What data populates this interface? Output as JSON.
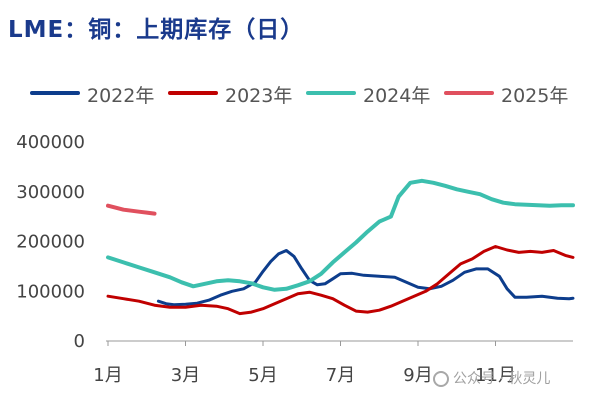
{
  "title": "LME：铜：上期库存（日）",
  "watermark": "公众号 · 秋灵儿",
  "chart_data": {
    "type": "line",
    "ylim": [
      0,
      400000
    ],
    "yticks": [
      "400000",
      "300000",
      "200000",
      "100000",
      "0"
    ],
    "xlim": [
      1,
      13
    ],
    "xticks": [
      "1月",
      "3月",
      "5月",
      "7月",
      "9月",
      "11月"
    ],
    "grid": false,
    "legend_position": "top",
    "series": [
      {
        "name": "2022年",
        "color": "#0d3d8c",
        "points": [
          [
            2.3,
            80000
          ],
          [
            2.5,
            75000
          ],
          [
            2.7,
            73000
          ],
          [
            3.0,
            74000
          ],
          [
            3.3,
            76000
          ],
          [
            3.6,
            82000
          ],
          [
            3.9,
            92000
          ],
          [
            4.2,
            100000
          ],
          [
            4.5,
            105000
          ],
          [
            4.8,
            118000
          ],
          [
            5.0,
            140000
          ],
          [
            5.2,
            160000
          ],
          [
            5.4,
            175000
          ],
          [
            5.6,
            182000
          ],
          [
            5.8,
            170000
          ],
          [
            6.0,
            145000
          ],
          [
            6.2,
            122000
          ],
          [
            6.4,
            113000
          ],
          [
            6.6,
            115000
          ],
          [
            6.8,
            125000
          ],
          [
            7.0,
            135000
          ],
          [
            7.3,
            136000
          ],
          [
            7.6,
            132000
          ],
          [
            8.0,
            130000
          ],
          [
            8.4,
            128000
          ],
          [
            8.7,
            118000
          ],
          [
            9.0,
            108000
          ],
          [
            9.3,
            105000
          ],
          [
            9.6,
            110000
          ],
          [
            9.9,
            122000
          ],
          [
            10.2,
            138000
          ],
          [
            10.5,
            145000
          ],
          [
            10.8,
            145000
          ],
          [
            11.1,
            130000
          ],
          [
            11.3,
            105000
          ],
          [
            11.5,
            88000
          ],
          [
            11.8,
            88000
          ],
          [
            12.2,
            90000
          ],
          [
            12.6,
            86000
          ],
          [
            12.9,
            85000
          ],
          [
            13.0,
            86000
          ]
        ]
      },
      {
        "name": "2023年",
        "color": "#c00000",
        "points": [
          [
            1.0,
            90000
          ],
          [
            1.4,
            85000
          ],
          [
            1.8,
            80000
          ],
          [
            2.2,
            72000
          ],
          [
            2.6,
            68000
          ],
          [
            3.0,
            68000
          ],
          [
            3.4,
            72000
          ],
          [
            3.8,
            70000
          ],
          [
            4.1,
            65000
          ],
          [
            4.4,
            55000
          ],
          [
            4.7,
            58000
          ],
          [
            5.0,
            65000
          ],
          [
            5.3,
            75000
          ],
          [
            5.6,
            85000
          ],
          [
            5.9,
            95000
          ],
          [
            6.2,
            98000
          ],
          [
            6.5,
            92000
          ],
          [
            6.8,
            85000
          ],
          [
            7.1,
            72000
          ],
          [
            7.4,
            60000
          ],
          [
            7.7,
            58000
          ],
          [
            8.0,
            62000
          ],
          [
            8.3,
            70000
          ],
          [
            8.6,
            80000
          ],
          [
            8.9,
            90000
          ],
          [
            9.2,
            100000
          ],
          [
            9.5,
            115000
          ],
          [
            9.8,
            135000
          ],
          [
            10.1,
            155000
          ],
          [
            10.4,
            165000
          ],
          [
            10.7,
            180000
          ],
          [
            11.0,
            190000
          ],
          [
            11.3,
            183000
          ],
          [
            11.6,
            178000
          ],
          [
            11.9,
            180000
          ],
          [
            12.2,
            178000
          ],
          [
            12.5,
            182000
          ],
          [
            12.8,
            172000
          ],
          [
            13.0,
            168000
          ]
        ]
      },
      {
        "name": "2024年",
        "color": "#3cbfae",
        "points": [
          [
            1.0,
            168000
          ],
          [
            1.4,
            158000
          ],
          [
            1.8,
            148000
          ],
          [
            2.2,
            138000
          ],
          [
            2.6,
            128000
          ],
          [
            2.9,
            118000
          ],
          [
            3.2,
            110000
          ],
          [
            3.5,
            115000
          ],
          [
            3.8,
            120000
          ],
          [
            4.1,
            122000
          ],
          [
            4.4,
            120000
          ],
          [
            4.7,
            116000
          ],
          [
            5.0,
            108000
          ],
          [
            5.3,
            103000
          ],
          [
            5.6,
            105000
          ],
          [
            5.9,
            112000
          ],
          [
            6.2,
            120000
          ],
          [
            6.5,
            135000
          ],
          [
            6.8,
            158000
          ],
          [
            7.1,
            178000
          ],
          [
            7.4,
            198000
          ],
          [
            7.7,
            220000
          ],
          [
            8.0,
            240000
          ],
          [
            8.3,
            250000
          ],
          [
            8.5,
            290000
          ],
          [
            8.8,
            318000
          ],
          [
            9.1,
            322000
          ],
          [
            9.4,
            318000
          ],
          [
            9.7,
            312000
          ],
          [
            10.0,
            305000
          ],
          [
            10.3,
            300000
          ],
          [
            10.6,
            295000
          ],
          [
            10.9,
            285000
          ],
          [
            11.2,
            278000
          ],
          [
            11.5,
            275000
          ],
          [
            11.8,
            274000
          ],
          [
            12.1,
            273000
          ],
          [
            12.4,
            272000
          ],
          [
            12.7,
            273000
          ],
          [
            13.0,
            273000
          ]
        ]
      },
      {
        "name": "2025年",
        "color": "#e0505e",
        "points": [
          [
            1.0,
            272000
          ],
          [
            1.2,
            268000
          ],
          [
            1.4,
            264000
          ],
          [
            1.6,
            262000
          ],
          [
            1.8,
            260000
          ],
          [
            2.0,
            258000
          ],
          [
            2.2,
            256000
          ]
        ]
      }
    ]
  }
}
